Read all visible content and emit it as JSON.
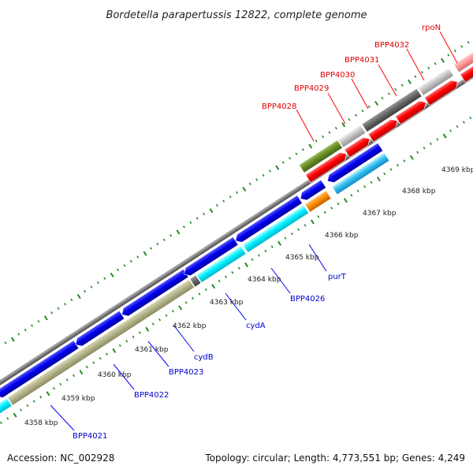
{
  "title": "Bordetella parapertussis 12822, complete genome",
  "footer": {
    "accession": "Accession: NC_002928",
    "stats": "Topology: circular; Length: 4,773,551 bp; Genes: 4,249"
  },
  "colors": {
    "background": "#ffffff",
    "backbone": "#808080",
    "forward_cds": "#ff0000",
    "reverse_cds": "#0000ff",
    "reverse_feature": "#00ffff",
    "forward_feature_dark": "#696969",
    "forward_feature_light": "#c0c0c0",
    "olive_feature": "#6b8e23",
    "orange_feature": "#ff8c00",
    "tan_feature": "#b4b48c",
    "forward_label": "#dd0000",
    "reverse_label": "#0000cc",
    "tick_marks": "#228b22"
  },
  "scale_ticks": [
    "4358 kbp",
    "4359 kbp",
    "4360 kbp",
    "4361 kbp",
    "4362 kbp",
    "4363 kbp",
    "4364 kbp",
    "4365 kbp",
    "4366 kbp",
    "4367 kbp",
    "4368 kbp",
    "4369 kbp"
  ],
  "forward_labels": [
    "BPP4028",
    "BPP4029",
    "BPP4030",
    "BPP4031",
    "BPP4032",
    "rpoN"
  ],
  "reverse_labels": [
    "BPP4021",
    "BPP4022",
    "BPP4023",
    "cydB",
    "cydA",
    "BPP4026",
    "purT"
  ]
}
